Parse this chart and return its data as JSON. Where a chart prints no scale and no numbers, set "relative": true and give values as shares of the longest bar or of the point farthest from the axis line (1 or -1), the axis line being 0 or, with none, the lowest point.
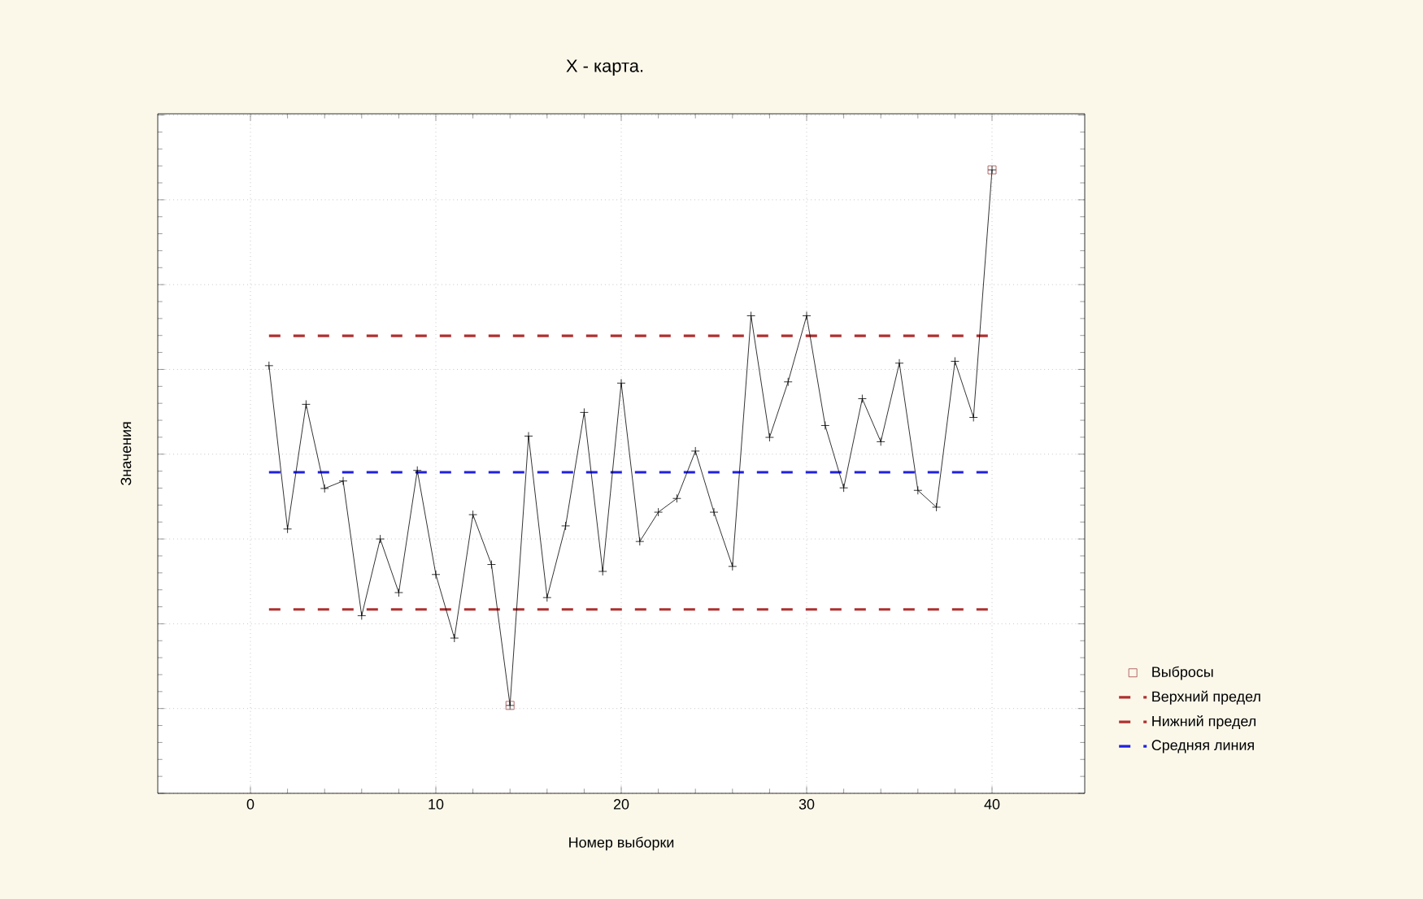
{
  "chart_data": {
    "type": "line",
    "title": "X - карта.",
    "xlabel": "Номер выборки",
    "ylabel": "Значения",
    "relative": true,
    "x": [
      1,
      2,
      3,
      4,
      5,
      6,
      7,
      8,
      9,
      10,
      11,
      12,
      13,
      14,
      15,
      16,
      17,
      18,
      19,
      20,
      21,
      22,
      23,
      24,
      25,
      26,
      27,
      28,
      29,
      30,
      31,
      32,
      33,
      34,
      35,
      36,
      37,
      38,
      39,
      40
    ],
    "series": [
      {
        "color": "#000000",
        "marker": "cross",
        "values": [
          0.686,
          0.424,
          0.624,
          0.489,
          0.501,
          0.285,
          0.408,
          0.322,
          0.518,
          0.351,
          0.249,
          0.447,
          0.367,
          0.141,
          0.573,
          0.314,
          0.429,
          0.611,
          0.356,
          0.658,
          0.404,
          0.451,
          0.473,
          0.549,
          0.451,
          0.364,
          0.766,
          0.571,
          0.66,
          0.766,
          0.59,
          0.49,
          0.633,
          0.564,
          0.69,
          0.486,
          0.459,
          0.693,
          0.603,
          1.0
        ]
      },
      {
        "type": "scatter",
        "name": "Выбросы",
        "color": "#a04848",
        "marker": "square",
        "x": [
          14,
          40
        ],
        "values": [
          0.141,
          1.0
        ]
      }
    ],
    "ref_lines": [
      {
        "axis": "y",
        "value": 0.734,
        "label": "Верхний предел",
        "color": "#b03030",
        "line_style": "dashed"
      },
      {
        "axis": "y",
        "value": 0.295,
        "label": "Нижний предел",
        "color": "#b03030",
        "line_style": "dashed"
      },
      {
        "axis": "y",
        "value": 0.515,
        "label": "Средняя линия",
        "color": "#2020e0",
        "line_style": "dashed"
      }
    ],
    "xlim": [
      -5,
      45
    ],
    "xticks": [
      0,
      10,
      20,
      30,
      40
    ],
    "grid": true,
    "legend": "right"
  }
}
